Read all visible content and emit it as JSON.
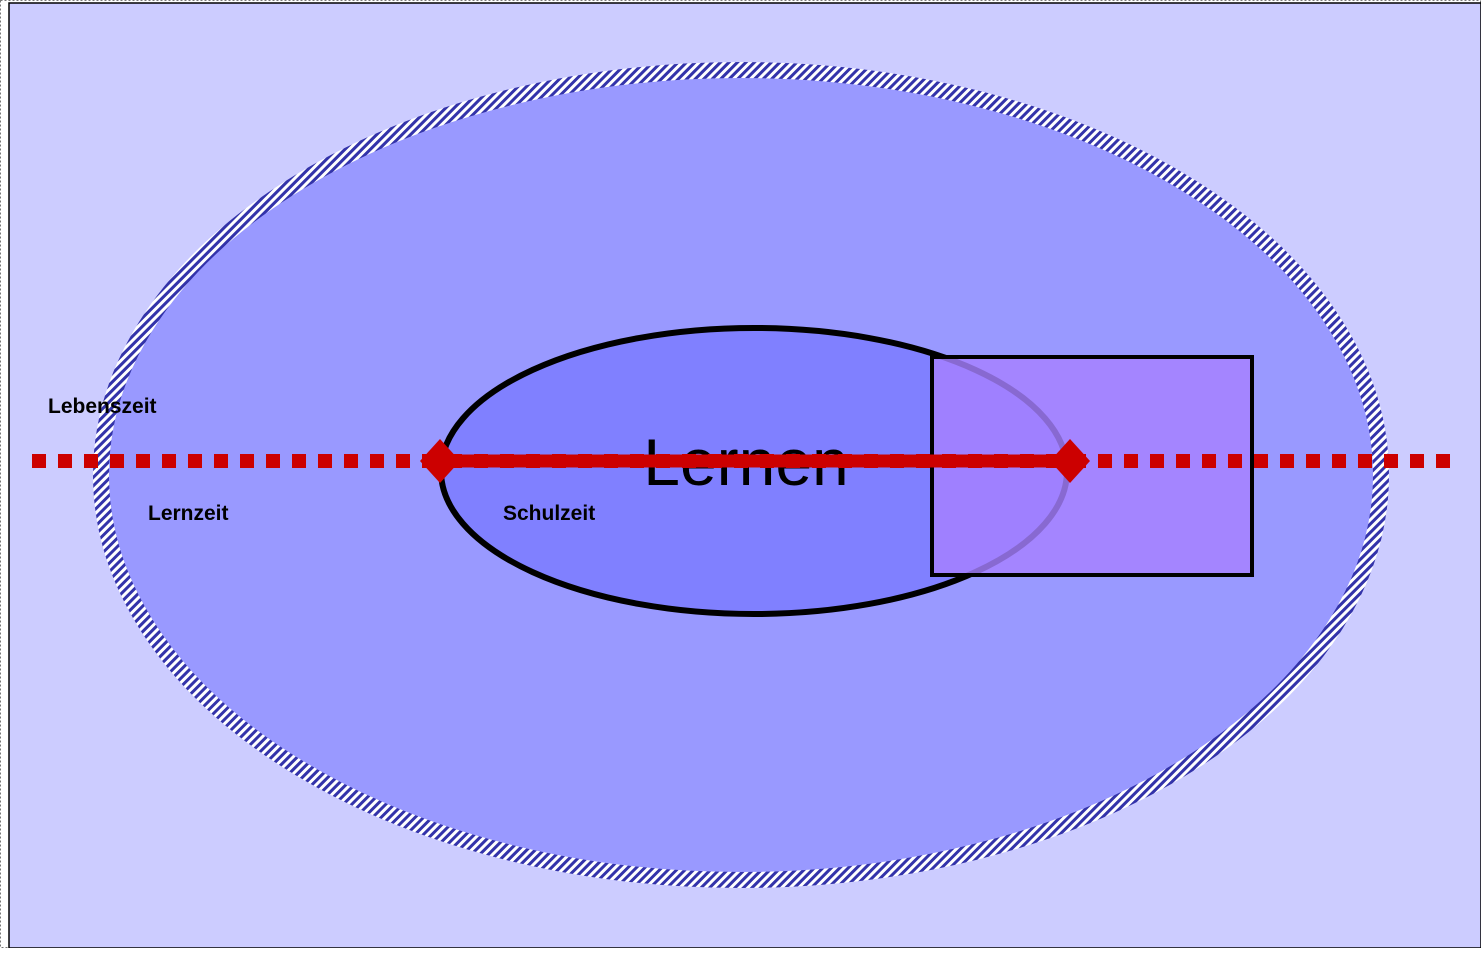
{
  "diagram": {
    "center_label": "Lernen",
    "labels": {
      "lifetime": "Lebenszeit",
      "learning_time": "Lernzeit",
      "school_time": "Schulzeit"
    }
  },
  "colors": {
    "background": "#ccccff",
    "outer_ellipse_fill": "#9999ff",
    "outer_ellipse_stroke": "#3333aa",
    "inner_ellipse_fill": "#8080ff",
    "rectangle_fill": "#a680ff",
    "timeline": "#cc0000"
  }
}
